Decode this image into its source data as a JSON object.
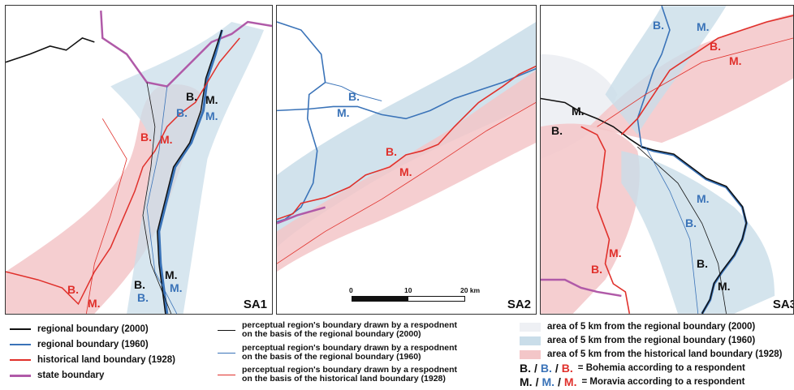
{
  "panels": [
    {
      "label": "SA1"
    },
    {
      "label": "SA2"
    },
    {
      "label": "SA3"
    }
  ],
  "map_labels": {
    "B": "B.",
    "M": "M."
  },
  "scale_bar": {
    "t0": "0",
    "t1": "10",
    "t2": "20 km"
  },
  "legend": {
    "regional_2000": "regional boundary (2000)",
    "regional_1960": "regional boundary (1960)",
    "historical_1928": "historical land boundary (1928)",
    "state": "state boundary",
    "perc_2000_l1": "perceptual region's boundary drawn by a respodnent",
    "perc_2000_l2": "on the basis of the regional boundary (2000)",
    "perc_1960_l1": "perceptual region's boundary drawn by a respodnent",
    "perc_1960_l2": "on the basis of the regional boundary (1960)",
    "perc_1928_l1": "perceptual region's boundary drawn by a respodnent",
    "perc_1928_l2": "on the basis of the historical land boundary (1928)",
    "area_2000": "area of 5 km from the regional boundary (2000)",
    "area_1960": "area of 5 km from the regional boundary (1960)",
    "area_1928": "area of 5 km from the historical land boundary (1928)",
    "bohemia_sep": "/",
    "bohemia_text": "= Bohemia according to a respondent",
    "moravia_text": "= Moravia according to a respondent"
  },
  "colors": {
    "black_line": "#111111",
    "blue_line": "#3a73b8",
    "red_line": "#e0302b",
    "state_line": "#b05aa8",
    "area_2000": "#eef0f4",
    "area_1960": "#c9dde9",
    "area_1928": "#f3c6c8"
  }
}
